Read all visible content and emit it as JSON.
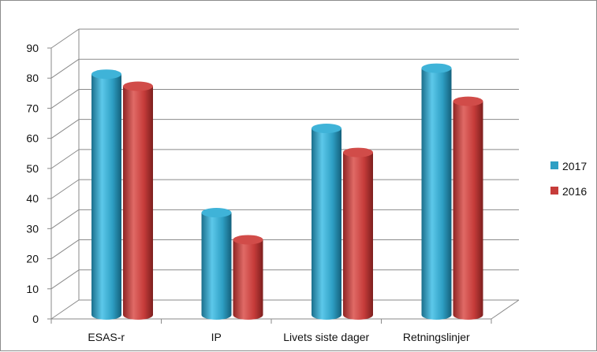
{
  "chart_data": {
    "type": "bar",
    "style": "3d-cylinder",
    "categories": [
      "ESAS-r",
      "IP",
      "Livets siste dager",
      "Retningslinjer"
    ],
    "series": [
      {
        "name": "2017",
        "values": [
          80,
          34,
          62,
          82
        ],
        "color": "#2e9fc4"
      },
      {
        "name": "2016",
        "values": [
          76,
          25,
          54,
          71
        ],
        "color": "#c63c3a"
      }
    ],
    "yticks": [
      0,
      10,
      20,
      30,
      40,
      50,
      60,
      70,
      80,
      90
    ],
    "ylim": [
      0,
      90
    ],
    "grid": true,
    "legend_position": "right"
  }
}
